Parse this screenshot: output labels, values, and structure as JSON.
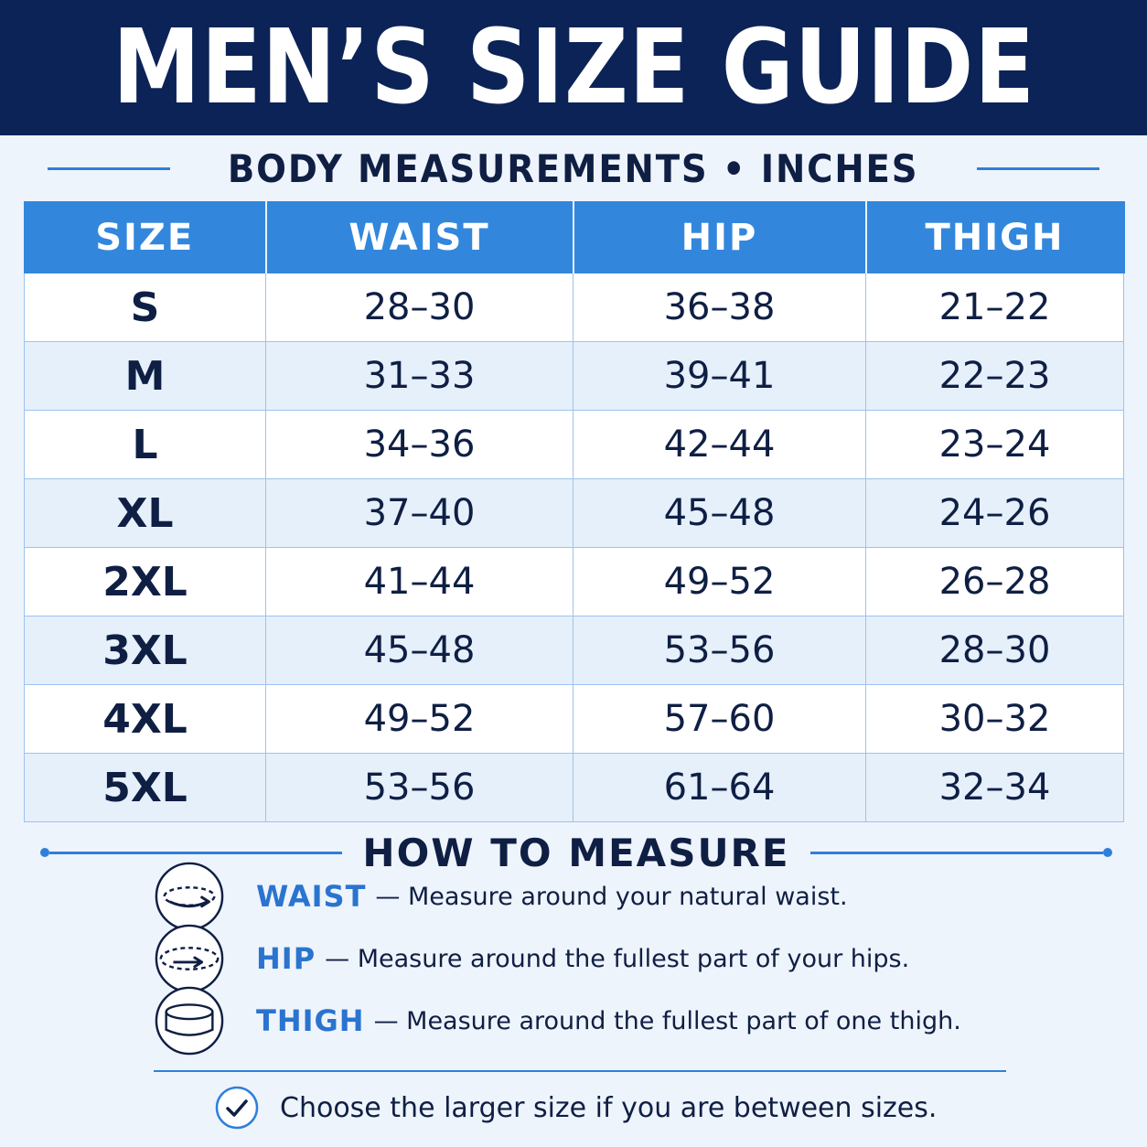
{
  "title": "MEN’S SIZE GUIDE",
  "subtitle": "BODY MEASUREMENTS • INCHES",
  "table": {
    "headers": [
      "SIZE",
      "WAIST",
      "HIP",
      "THIGH"
    ],
    "rows": [
      [
        "S",
        "28–30",
        "36–38",
        "21–22"
      ],
      [
        "M",
        "31–33",
        "39–41",
        "22–23"
      ],
      [
        "L",
        "34–36",
        "42–44",
        "23–24"
      ],
      [
        "XL",
        "37–40",
        "45–48",
        "24–26"
      ],
      [
        "2XL",
        "41–44",
        "49–52",
        "26–28"
      ],
      [
        "3XL",
        "45–48",
        "53–56",
        "28–30"
      ],
      [
        "4XL",
        "49–52",
        "57–60",
        "30–32"
      ],
      [
        "5XL",
        "53–56",
        "61–64",
        "32–34"
      ]
    ]
  },
  "how_to": {
    "heading": "HOW TO MEASURE",
    "items": [
      {
        "label": "WAIST",
        "desc": "— Measure around your natural waist.",
        "icon": "waist-tape-icon"
      },
      {
        "label": "HIP",
        "desc": "— Measure around the fullest part of your hips.",
        "icon": "hip-tape-icon"
      },
      {
        "label": "THIGH",
        "desc": "— Measure around the fullest part of one thigh.",
        "icon": "thigh-tape-icon"
      }
    ]
  },
  "tip": {
    "text": "Choose the larger size if you are between sizes.",
    "icon": "checkmark-icon"
  },
  "colors": {
    "header_bg": "#0c2357",
    "accent": "#3287dd",
    "label_blue": "#2a74cf",
    "text_dark": "#0f1f44",
    "row_alt": "#e6f0fb"
  }
}
